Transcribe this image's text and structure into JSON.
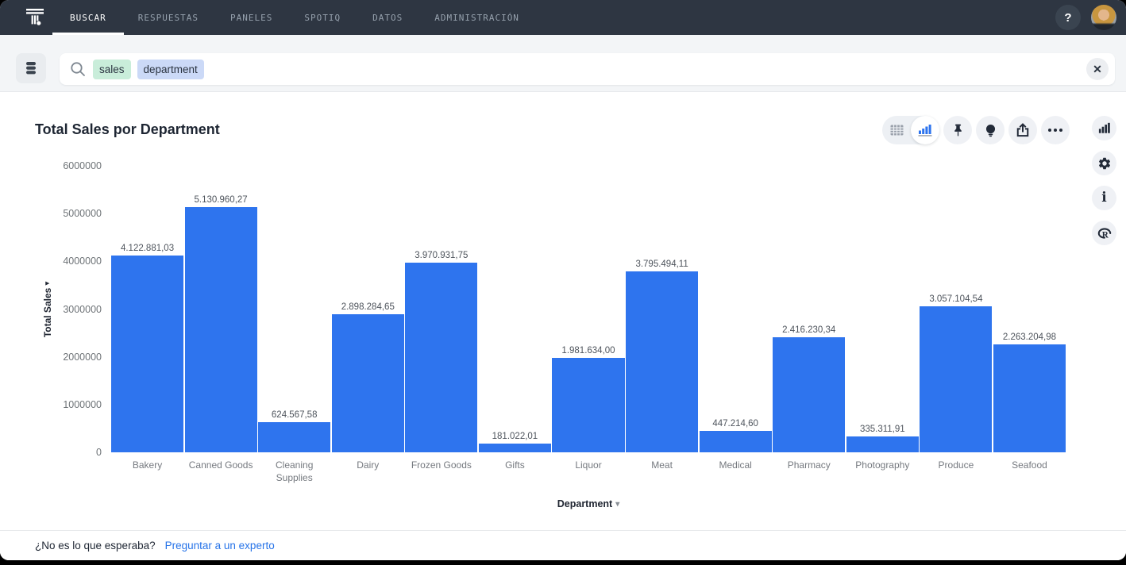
{
  "nav": {
    "items": [
      {
        "label": "BUSCAR",
        "active": true
      },
      {
        "label": "RESPUESTAS",
        "active": false
      },
      {
        "label": "PANELES",
        "active": false
      },
      {
        "label": "SPOTIQ",
        "active": false
      },
      {
        "label": "DATOS",
        "active": false
      },
      {
        "label": "ADMINISTRACIÓN",
        "active": false
      }
    ],
    "help_label": "?"
  },
  "search": {
    "tokens": [
      {
        "text": "sales",
        "type": "measure"
      },
      {
        "text": "department",
        "type": "attribute"
      }
    ],
    "clear_label": "✕"
  },
  "answer": {
    "title": "Total Sales por Department"
  },
  "chart_data": {
    "type": "bar",
    "title": "Total Sales por Department",
    "xlabel": "Department",
    "ylabel": "Total Sales",
    "ylim": [
      0,
      6000000
    ],
    "grid": false,
    "bar_color": "#2E74EE",
    "yticks": [
      "6000000",
      "5000000",
      "4000000",
      "3000000",
      "2000000",
      "1000000",
      "0"
    ],
    "categories": [
      "Bakery",
      "Canned Goods",
      "Cleaning Supplies",
      "Dairy",
      "Frozen Goods",
      "Gifts",
      "Liquor",
      "Meat",
      "Medical",
      "Pharmacy",
      "Photography",
      "Produce",
      "Seafood"
    ],
    "values": [
      4122881.03,
      5130960.27,
      624567.58,
      2898284.65,
      3970931.75,
      181022.01,
      1981634.0,
      3795494.11,
      447214.6,
      2416230.34,
      335311.91,
      3057104.54,
      2263204.98
    ],
    "value_labels": [
      "4.122.881,03",
      "5.130.960,27",
      "624.567,58",
      "2.898.284,65",
      "3.970.931,75",
      "181.022,01",
      "1.981.634,00",
      "3.795.494,11",
      "447.214,60",
      "2.416.230,34",
      "335.311,91",
      "3.057.104,54",
      "2.263.204,98"
    ]
  },
  "footer": {
    "question": "¿No es lo que esperaba?",
    "link": "Preguntar a un experto"
  },
  "colors": {
    "nav_bg": "#2E3642",
    "bar_blue": "#2E74EE",
    "link_blue": "#2673E8",
    "token_green": "#C9EDDA",
    "token_blue": "#CBD9F7"
  }
}
